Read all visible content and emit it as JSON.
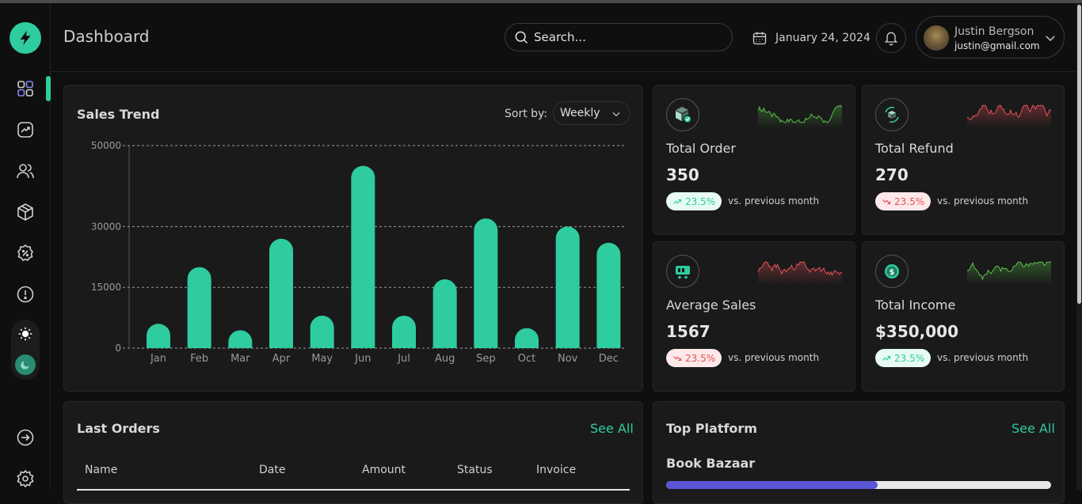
{
  "header": {
    "title": "Dashboard",
    "search_placeholder": "Search...",
    "date": "January 24, 2024",
    "user_name": "Justin Bergson",
    "user_email": "justin@gmail.com"
  },
  "sidebar": {
    "items": [
      "dashboard-icon",
      "trend-icon",
      "users-icon",
      "box-icon",
      "discount-icon",
      "alert-icon"
    ],
    "bottom": [
      "logout-icon",
      "settings-icon"
    ],
    "active_index": 0
  },
  "sales_trend": {
    "title": "Sales Trend",
    "sort_label": "Sort by:",
    "sort_value": "Weekly"
  },
  "chart_data": {
    "type": "bar",
    "title": "Sales Trend",
    "categories": [
      "Jan",
      "Feb",
      "Mar",
      "Apr",
      "May",
      "Jun",
      "Jul",
      "Aug",
      "Sep",
      "Oct",
      "Nov",
      "Dec"
    ],
    "values": [
      6000,
      20000,
      3000,
      27000,
      8000,
      45000,
      8000,
      17000,
      32000,
      4000,
      30000,
      26000
    ],
    "y_ticks": [
      0,
      15000,
      30000,
      50000
    ],
    "ylim": [
      0,
      50000
    ],
    "grid": "dashed-horizontal",
    "color": "#2ecc9f"
  },
  "stats": [
    {
      "label": "Total Order",
      "value": "350",
      "change": "23.5%",
      "trend": "up",
      "comparison": "vs. previous month",
      "icon": "box-check-icon",
      "spark_color": "#5bbf4a"
    },
    {
      "label": "Total Refund",
      "value": "270",
      "change": "23.5%",
      "trend": "down",
      "comparison": "vs. previous month",
      "icon": "box-refresh-icon",
      "spark_color": "#e5515a"
    },
    {
      "label": "Average Sales",
      "value": "1567",
      "change": "23.5%",
      "trend": "down",
      "comparison": "vs. previous month",
      "icon": "cart-icon",
      "spark_color": "#e5515a"
    },
    {
      "label": "Total Income",
      "value": "$350,000",
      "change": "23.5%",
      "trend": "up",
      "comparison": "vs. previous month",
      "icon": "coin-icon",
      "spark_color": "#5bbf4a"
    }
  ],
  "last_orders": {
    "title": "Last Orders",
    "see_all": "See All",
    "columns": [
      "Name",
      "Date",
      "Amount",
      "Status",
      "Invoice"
    ]
  },
  "top_platform": {
    "title": "Top Platform",
    "see_all": "See All",
    "items": [
      {
        "name": "Book Bazaar",
        "progress": 0.55
      }
    ]
  },
  "colors": {
    "accent": "#2ecc9f",
    "background": "#0f0f0f",
    "card": "#1a1a1a",
    "progress": "#5b56d6"
  }
}
